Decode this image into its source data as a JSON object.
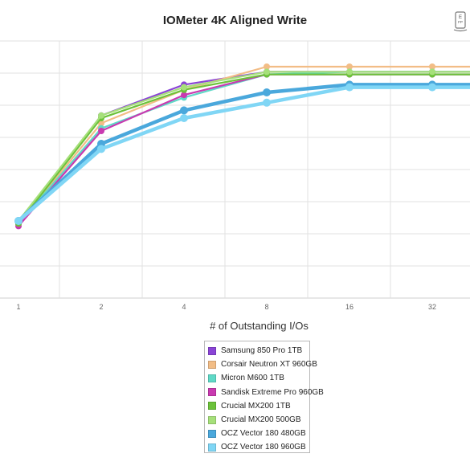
{
  "chart_data": {
    "type": "line",
    "title": "IOMeter 4K Aligned Write",
    "xlabel": "# of Outstanding I/Os",
    "ylabel": "",
    "categories": [
      "1",
      "2",
      "4",
      "8",
      "16",
      "32"
    ],
    "y_relative_scale": "unlabeled y-axis; values expressed as fraction of plot height (0 = bottom, 1 = top)",
    "ylim": [
      0,
      1
    ],
    "grid": true,
    "legend_position": "bottom",
    "series": [
      {
        "name": "Samsung 850 Pro 1TB",
        "color": "#8a44d6",
        "values": [
          0.29,
          0.71,
          0.83,
          0.88,
          0.88,
          0.88
        ]
      },
      {
        "name": "Corsair Neutron XT 960GB",
        "color": "#f2bd86",
        "values": [
          0.29,
          0.68,
          0.81,
          0.9,
          0.9,
          0.9
        ]
      },
      {
        "name": "Micron M600 1TB",
        "color": "#5fd9c7",
        "values": [
          0.29,
          0.66,
          0.78,
          0.87,
          0.88,
          0.88
        ]
      },
      {
        "name": "Sandisk Extreme Pro 960GB",
        "color": "#c93ab0",
        "values": [
          0.28,
          0.65,
          0.79,
          0.87,
          0.87,
          0.87
        ]
      },
      {
        "name": "Crucial MX200 1TB",
        "color": "#6cc23a",
        "values": [
          0.29,
          0.7,
          0.81,
          0.87,
          0.87,
          0.87
        ]
      },
      {
        "name": "Crucial MX200 500GB",
        "color": "#a6e07a",
        "values": [
          0.3,
          0.71,
          0.82,
          0.88,
          0.88,
          0.88
        ]
      },
      {
        "name": "OCZ Vector 180 480GB",
        "color": "#4aa8dc",
        "values": [
          0.3,
          0.6,
          0.73,
          0.8,
          0.83,
          0.83
        ]
      },
      {
        "name": "OCZ Vector 180 960GB",
        "color": "#80d6f5",
        "values": [
          0.3,
          0.58,
          0.7,
          0.76,
          0.82,
          0.82
        ]
      }
    ]
  },
  "icon": {
    "name": "eye-chart-icon"
  }
}
